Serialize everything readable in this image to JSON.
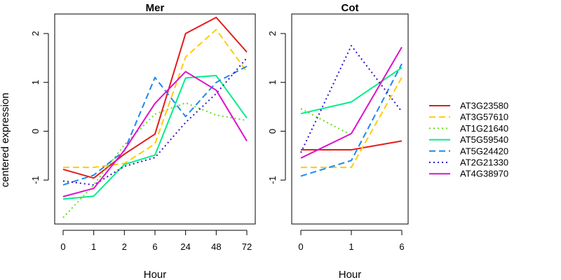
{
  "chart_data": [
    {
      "type": "line",
      "title": "Mer",
      "xlabel": "Hour",
      "ylabel": "centered expression",
      "categories": [
        "0",
        "1",
        "2",
        "6",
        "24",
        "48",
        "72"
      ],
      "yticks": [
        "-1",
        "0",
        "1",
        "2"
      ],
      "ylim": [
        -1.9,
        2.4
      ],
      "series": [
        {
          "name": "AT3G23580",
          "values": [
            -0.78,
            -0.96,
            -0.47,
            -0.06,
            2.0,
            2.33,
            1.62
          ]
        },
        {
          "name": "AT3G57610",
          "values": [
            -0.74,
            -0.74,
            -0.66,
            -0.26,
            1.52,
            2.08,
            1.22
          ]
        },
        {
          "name": "AT1G21640",
          "values": [
            -1.77,
            -1.1,
            -0.28,
            0.35,
            0.58,
            0.33,
            0.22
          ]
        },
        {
          "name": "AT5G59540",
          "values": [
            -1.39,
            -1.33,
            -0.68,
            -0.49,
            1.09,
            1.14,
            0.27
          ]
        },
        {
          "name": "AT5G24420",
          "values": [
            -1.1,
            -0.9,
            -0.4,
            1.1,
            0.3,
            1.0,
            1.33
          ]
        },
        {
          "name": "AT2G21330",
          "values": [
            -1.02,
            -1.1,
            -0.72,
            -0.54,
            0.18,
            0.77,
            1.5
          ]
        },
        {
          "name": "AT4G38970",
          "values": [
            -1.34,
            -1.17,
            -0.39,
            0.57,
            1.22,
            0.84,
            -0.2
          ]
        }
      ]
    },
    {
      "type": "line",
      "title": "Cot",
      "xlabel": "Hour",
      "categories": [
        "0",
        "1",
        "6"
      ],
      "yticks": [
        "-1",
        "0",
        "1",
        "2"
      ],
      "ylim": [
        -1.9,
        2.4
      ],
      "series": [
        {
          "name": "AT3G23580",
          "values": [
            -0.38,
            -0.38,
            -0.2
          ]
        },
        {
          "name": "AT3G57610",
          "values": [
            -0.74,
            -0.74,
            1.1
          ]
        },
        {
          "name": "AT1G21640",
          "values": [
            0.46,
            -0.08,
            null
          ]
        },
        {
          "name": "AT5G59540",
          "values": [
            0.36,
            0.6,
            1.3
          ]
        },
        {
          "name": "AT5G24420",
          "values": [
            -0.92,
            -0.6,
            1.38
          ]
        },
        {
          "name": "AT2G21330",
          "values": [
            -0.44,
            1.75,
            0.4
          ]
        },
        {
          "name": "AT4G38970",
          "values": [
            -0.55,
            -0.05,
            1.72
          ]
        }
      ]
    }
  ],
  "legend": {
    "placement": "right",
    "entries": [
      {
        "label": "AT3G23580",
        "color": "#e41a1c",
        "dash": "solid"
      },
      {
        "label": "AT3G57610",
        "color": "#ffcc00",
        "dash": "dashed"
      },
      {
        "label": "AT1G21640",
        "color": "#66dd22",
        "dash": "dotted"
      },
      {
        "label": "AT5G59540",
        "color": "#00ee88",
        "dash": "solid"
      },
      {
        "label": "AT5G24420",
        "color": "#1e88ee",
        "dash": "dashed"
      },
      {
        "label": "AT2G21330",
        "color": "#3311cc",
        "dash": "dotted"
      },
      {
        "label": "AT4G38970",
        "color": "#dd11cc",
        "dash": "solid"
      }
    ]
  }
}
